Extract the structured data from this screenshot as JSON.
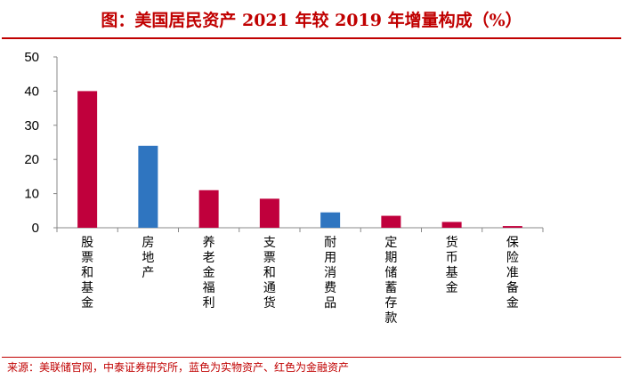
{
  "chart_data": {
    "type": "bar",
    "title": "图：美国居民资产 2021 年较 2019 年增量构成（%）",
    "categories": [
      "股票和基金",
      "房地产",
      "养老金福利",
      "支票和通货",
      "耐用消费品",
      "定期储蓄存款",
      "货币基金",
      "保险准备金"
    ],
    "values": [
      40,
      24,
      11,
      8.5,
      4.5,
      3.5,
      1.7,
      0.5
    ],
    "bar_colors": [
      "#c0003c",
      "#2f75c0",
      "#c0003c",
      "#c0003c",
      "#2f75c0",
      "#c0003c",
      "#c0003c",
      "#c0003c"
    ],
    "yticks": [
      0,
      10,
      20,
      30,
      40,
      50
    ],
    "ylim": [
      0,
      50
    ],
    "xlabel": "",
    "ylabel": "",
    "grid": false
  },
  "source": "来源：美联储官网，中泰证券研究所，蓝色为实物资产、红色为金融资产"
}
